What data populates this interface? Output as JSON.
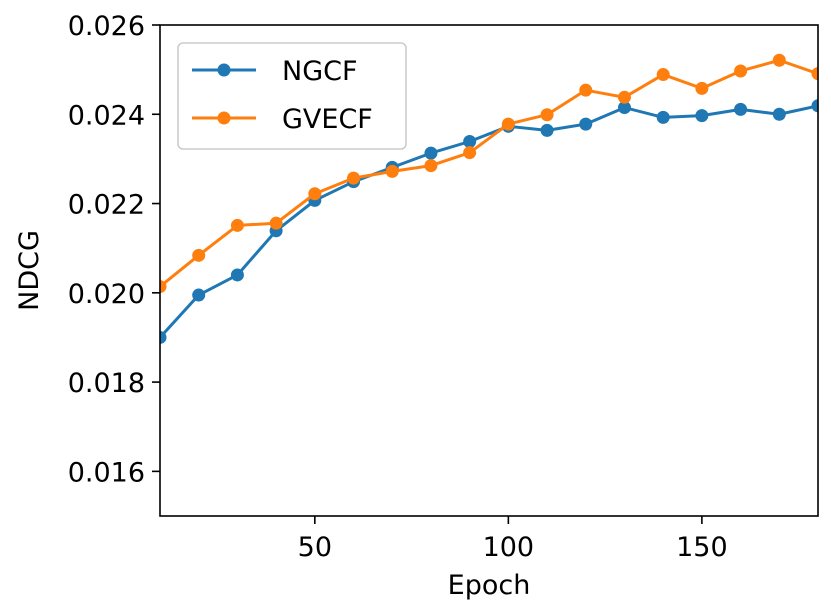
{
  "chart_data": {
    "type": "line",
    "title": "",
    "xlabel": "Epoch",
    "ylabel": "NDCG",
    "xlim": [
      10,
      180
    ],
    "ylim": [
      0.015,
      0.026
    ],
    "xticks": [
      50,
      100,
      150
    ],
    "xtick_labels": [
      "50",
      "100",
      "150"
    ],
    "yticks": [
      0.016,
      0.018,
      0.02,
      0.022,
      0.024,
      0.026
    ],
    "ytick_labels": [
      "0.016",
      "0.018",
      "0.020",
      "0.022",
      "0.024",
      "0.026"
    ],
    "grid": false,
    "legend_position": "top-left",
    "x": [
      10,
      20,
      30,
      40,
      50,
      60,
      70,
      80,
      90,
      100,
      110,
      120,
      130,
      140,
      150,
      160,
      170,
      180
    ],
    "series": [
      {
        "name": "NGCF",
        "color": "#1f77b4",
        "values": [
          0.019,
          0.01995,
          0.0204,
          0.02139,
          0.02207,
          0.02249,
          0.02281,
          0.02313,
          0.02339,
          0.02373,
          0.02364,
          0.02378,
          0.02415,
          0.02393,
          0.02397,
          0.02411,
          0.024,
          0.02419
        ]
      },
      {
        "name": "GVECF",
        "color": "#ff7f0e",
        "values": [
          0.02014,
          0.02084,
          0.02151,
          0.02156,
          0.02222,
          0.02257,
          0.02272,
          0.02285,
          0.02314,
          0.02378,
          0.02399,
          0.02454,
          0.02438,
          0.02489,
          0.02458,
          0.02497,
          0.02521,
          0.02491
        ]
      }
    ]
  }
}
